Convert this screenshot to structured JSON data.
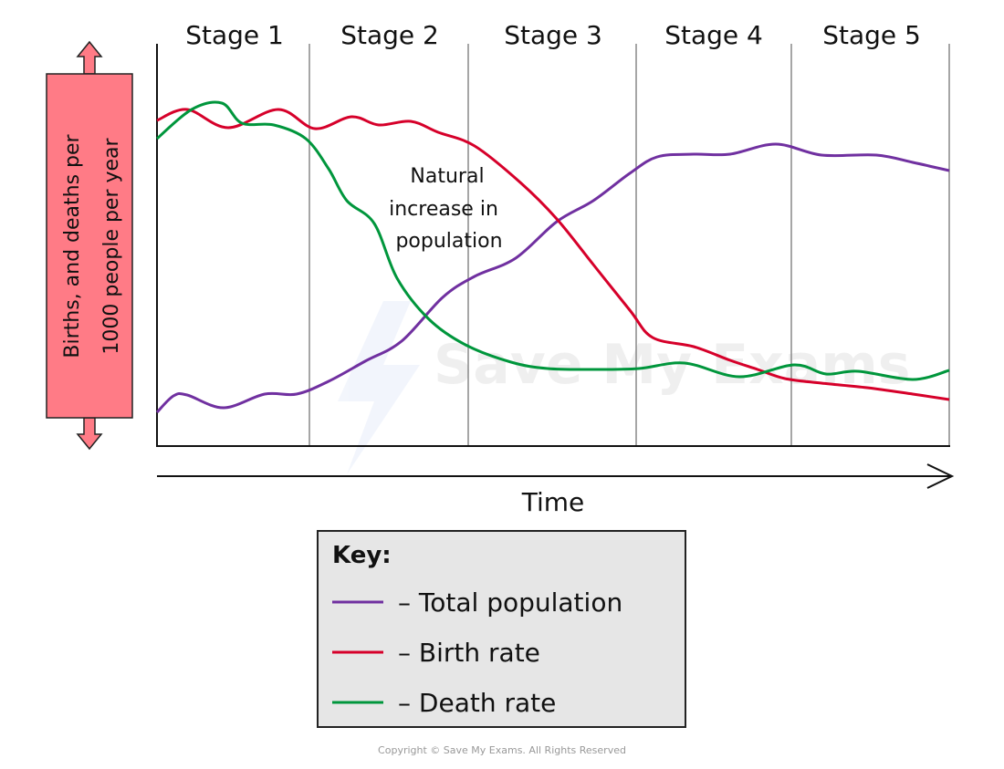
{
  "stages": [
    "Stage 1",
    "Stage 2",
    "Stage 3",
    "Stage 4",
    "Stage 5"
  ],
  "y_axis_label": [
    "Births, and deaths per",
    "1000 people per year"
  ],
  "x_axis_label": "Time",
  "annotation": [
    "Natural",
    "increase in",
    "population"
  ],
  "key": {
    "title": "Key:",
    "items": [
      {
        "label": "– Total population",
        "color": "#7030a0"
      },
      {
        "label": "– Birth rate",
        "color": "#d6002a"
      },
      {
        "label": "– Death rate",
        "color": "#00963c"
      }
    ]
  },
  "watermark": "Save My Exams",
  "copyright": "Copyright © Save My Exams. All Rights Reserved",
  "colors": {
    "axis_label_box": "#ff7b86",
    "key_box": "#e6e6e6"
  }
}
